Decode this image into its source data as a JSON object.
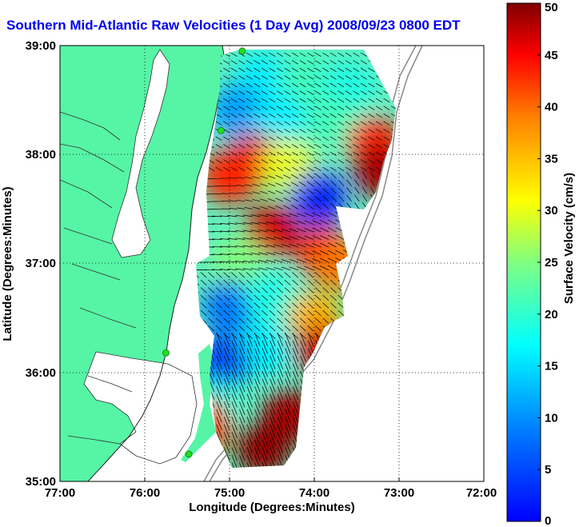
{
  "title": "Southern Mid-Atlantic Raw Velocities (1 Day Avg) 2008/09/23 0800 EDT",
  "map": {
    "xlabel": "Longitude (Degrees:Minutes)",
    "ylabel": "Latitude (Degrees:Minutes)",
    "x_ticks": [
      "77:00",
      "76:00",
      "75:00",
      "74:00",
      "73:00",
      "72:00"
    ],
    "y_ticks": [
      "39:00",
      "38:00",
      "37:00",
      "36:00",
      "35:00"
    ],
    "lon_range": [
      -77,
      -72
    ],
    "lat_range": [
      35,
      39
    ],
    "grid": "dotted",
    "land_color": "#55f5a5",
    "water_color": "#ffffff",
    "station_color": "#22dd22"
  },
  "colorbar": {
    "label": "Surface Velocity (cm/s)",
    "ticks": [
      "0",
      "5",
      "10",
      "15",
      "20",
      "25",
      "30",
      "35",
      "40",
      "45",
      "50"
    ],
    "range": [
      0,
      50
    ],
    "colormap": "jet"
  },
  "chart_data": {
    "type": "heatmap",
    "title": "Southern Mid-Atlantic Raw Velocities (1 Day Avg) 2008/09/23 0800 EDT",
    "xlabel": "Longitude (Degrees:Minutes)",
    "ylabel": "Latitude (Degrees:Minutes)",
    "xlim": [
      -77,
      -72
    ],
    "ylim": [
      35,
      39
    ],
    "colorbar_label": "Surface Velocity (cm/s)",
    "crange": [
      0,
      50
    ],
    "stations": [
      {
        "lon": -74.85,
        "lat": 38.95
      },
      {
        "lon": -75.1,
        "lat": 38.22
      },
      {
        "lon": -75.75,
        "lat": 36.18
      },
      {
        "lon": -75.48,
        "lat": 35.25
      }
    ],
    "speed_field": [
      {
        "lon": -74.6,
        "lat": 38.7,
        "speed": 18
      },
      {
        "lon": -74.1,
        "lat": 38.7,
        "speed": 22
      },
      {
        "lon": -73.6,
        "lat": 38.6,
        "speed": 20
      },
      {
        "lon": -74.9,
        "lat": 38.4,
        "speed": 14
      },
      {
        "lon": -74.4,
        "lat": 38.3,
        "speed": 18
      },
      {
        "lon": -73.8,
        "lat": 38.3,
        "speed": 22
      },
      {
        "lon": -73.3,
        "lat": 38.1,
        "speed": 42
      },
      {
        "lon": -73.2,
        "lat": 37.85,
        "speed": 48
      },
      {
        "lon": -74.7,
        "lat": 37.95,
        "speed": 45
      },
      {
        "lon": -75.0,
        "lat": 37.8,
        "speed": 42
      },
      {
        "lon": -74.3,
        "lat": 37.9,
        "speed": 30
      },
      {
        "lon": -73.95,
        "lat": 37.6,
        "speed": 8
      },
      {
        "lon": -74.5,
        "lat": 37.3,
        "speed": 46
      },
      {
        "lon": -73.9,
        "lat": 37.1,
        "speed": 44
      },
      {
        "lon": -73.7,
        "lat": 37.0,
        "speed": 38
      },
      {
        "lon": -74.9,
        "lat": 37.0,
        "speed": 25
      },
      {
        "lon": -75.0,
        "lat": 36.6,
        "speed": 12
      },
      {
        "lon": -74.5,
        "lat": 36.7,
        "speed": 20
      },
      {
        "lon": -74.0,
        "lat": 36.5,
        "speed": 35
      },
      {
        "lon": -73.9,
        "lat": 36.2,
        "speed": 46
      },
      {
        "lon": -74.6,
        "lat": 36.2,
        "speed": 18
      },
      {
        "lon": -75.1,
        "lat": 36.1,
        "speed": 10
      },
      {
        "lon": -74.3,
        "lat": 35.6,
        "speed": 48
      },
      {
        "lon": -74.6,
        "lat": 35.3,
        "speed": 49
      },
      {
        "lon": -75.2,
        "lat": 35.7,
        "speed": 20
      },
      {
        "lon": -75.3,
        "lat": 35.5,
        "speed": 40
      }
    ]
  }
}
